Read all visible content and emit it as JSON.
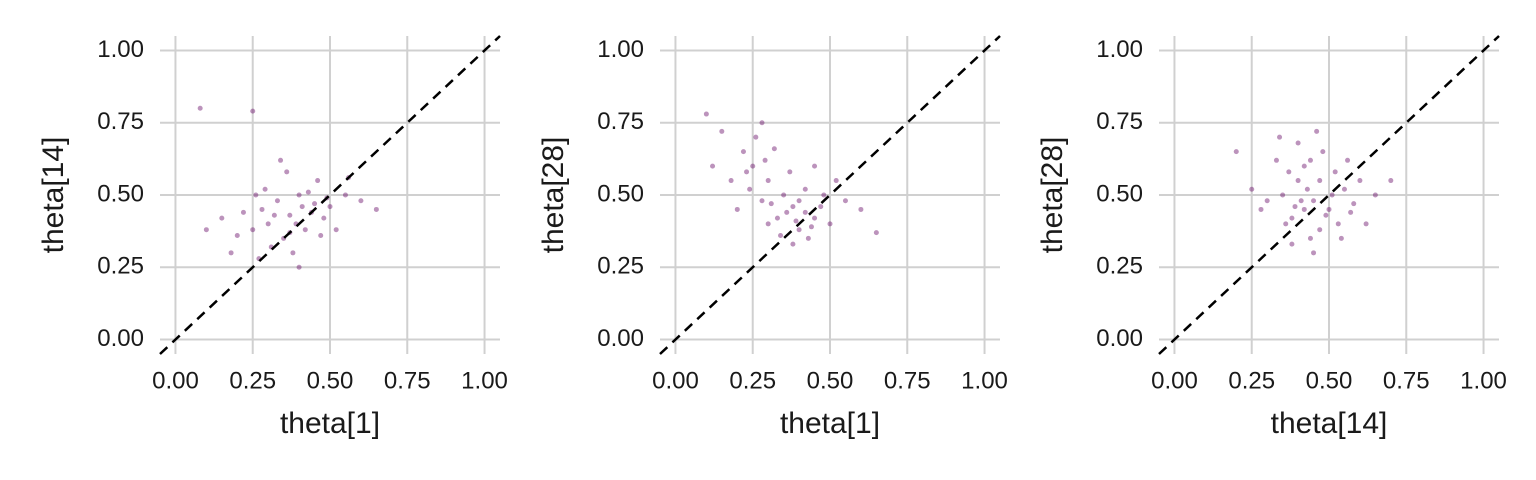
{
  "chart_data": [
    {
      "type": "scatter",
      "x_label": "theta[1]",
      "y_label": "theta[14]",
      "color": "#6b0f6b",
      "grid": true,
      "xlim": [
        -0.05,
        1.05
      ],
      "ylim": [
        -0.05,
        1.05
      ],
      "xticks": [
        {
          "value": 0,
          "label": "0.00"
        },
        0.25,
        {
          "value": 0.5,
          "label": "0.50"
        },
        0.75,
        {
          "value": 1,
          "label": "1.00"
        }
      ],
      "yticks": [
        {
          "value": 0,
          "label": "0.00"
        },
        0.25,
        {
          "value": 0.5,
          "label": "0.50"
        },
        0.75,
        {
          "value": 1,
          "label": "1.00"
        }
      ],
      "x": [
        0.37,
        0.3,
        0.45,
        0.25,
        0.5,
        0.35,
        0.4,
        0.28,
        0.42,
        0.33,
        0.2,
        0.55,
        0.38,
        0.46,
        0.31,
        0.48,
        0.22,
        0.36,
        0.27,
        0.52,
        0.15,
        0.6,
        0.4,
        0.34,
        0.1,
        0.65,
        0.08,
        0.25,
        0.44,
        0.39,
        0.29,
        0.47,
        0.18,
        0.56,
        0.41,
        0.32,
        0.37,
        0.43,
        0.26,
        0.49
      ],
      "y": [
        0.43,
        0.4,
        0.47,
        0.38,
        0.46,
        0.35,
        0.5,
        0.45,
        0.38,
        0.48,
        0.36,
        0.5,
        0.3,
        0.55,
        0.32,
        0.42,
        0.44,
        0.58,
        0.28,
        0.38,
        0.42,
        0.48,
        0.25,
        0.62,
        0.38,
        0.45,
        0.8,
        0.79,
        0.44,
        0.4,
        0.52,
        0.36,
        0.3,
        0.56,
        0.46,
        0.43,
        0.37,
        0.51,
        0.5,
        0.49
      ]
    },
    {
      "type": "scatter",
      "x_label": "theta[1]",
      "y_label": "theta[28]",
      "color": "#6b0f6b",
      "grid": true,
      "xlim": [
        -0.05,
        1.05
      ],
      "ylim": [
        -0.05,
        1.05
      ],
      "xticks": [
        {
          "value": 0,
          "label": "0.00"
        },
        0.25,
        {
          "value": 0.5,
          "label": "0.50"
        },
        0.75,
        {
          "value": 1,
          "label": "1.00"
        }
      ],
      "yticks": [
        {
          "value": 0,
          "label": "0.00"
        },
        0.25,
        {
          "value": 0.5,
          "label": "0.50"
        },
        0.75,
        {
          "value": 1,
          "label": "1.00"
        }
      ],
      "x": [
        0.38,
        0.3,
        0.42,
        0.25,
        0.45,
        0.35,
        0.28,
        0.4,
        0.22,
        0.48,
        0.33,
        0.37,
        0.18,
        0.5,
        0.26,
        0.43,
        0.15,
        0.55,
        0.3,
        0.38,
        0.2,
        0.1,
        0.6,
        0.45,
        0.32,
        0.24,
        0.4,
        0.36,
        0.28,
        0.47,
        0.52,
        0.34,
        0.12,
        0.65,
        0.42,
        0.29,
        0.39,
        0.31,
        0.44,
        0.23
      ],
      "y": [
        0.46,
        0.55,
        0.44,
        0.6,
        0.42,
        0.5,
        0.48,
        0.38,
        0.65,
        0.5,
        0.42,
        0.58,
        0.55,
        0.4,
        0.7,
        0.35,
        0.72,
        0.48,
        0.4,
        0.33,
        0.45,
        0.78,
        0.45,
        0.6,
        0.66,
        0.52,
        0.48,
        0.44,
        0.75,
        0.46,
        0.55,
        0.36,
        0.6,
        0.37,
        0.52,
        0.62,
        0.41,
        0.47,
        0.39,
        0.58
      ]
    },
    {
      "type": "scatter",
      "x_label": "theta[14]",
      "y_label": "theta[28]",
      "color": "#6b0f6b",
      "grid": true,
      "xlim": [
        -0.05,
        1.05
      ],
      "ylim": [
        -0.05,
        1.05
      ],
      "xticks": [
        {
          "value": 0,
          "label": "0.00"
        },
        0.25,
        {
          "value": 0.5,
          "label": "0.50"
        },
        0.75,
        {
          "value": 1,
          "label": "1.00"
        }
      ],
      "yticks": [
        {
          "value": 0,
          "label": "0.00"
        },
        0.25,
        {
          "value": 0.5,
          "label": "0.50"
        },
        0.75,
        {
          "value": 1,
          "label": "1.00"
        }
      ],
      "x": [
        0.45,
        0.4,
        0.5,
        0.38,
        0.55,
        0.42,
        0.47,
        0.35,
        0.52,
        0.44,
        0.3,
        0.58,
        0.4,
        0.48,
        0.36,
        0.6,
        0.33,
        0.53,
        0.25,
        0.65,
        0.42,
        0.46,
        0.38,
        0.56,
        0.28,
        0.7,
        0.43,
        0.49,
        0.37,
        0.51,
        0.2,
        0.62,
        0.45,
        0.34,
        0.54,
        0.41,
        0.47,
        0.39,
        0.57,
        0.44
      ],
      "y": [
        0.48,
        0.55,
        0.45,
        0.42,
        0.52,
        0.6,
        0.38,
        0.5,
        0.58,
        0.35,
        0.48,
        0.47,
        0.68,
        0.65,
        0.4,
        0.55,
        0.62,
        0.4,
        0.52,
        0.5,
        0.45,
        0.72,
        0.33,
        0.62,
        0.45,
        0.55,
        0.52,
        0.43,
        0.58,
        0.5,
        0.65,
        0.4,
        0.3,
        0.7,
        0.35,
        0.48,
        0.55,
        0.46,
        0.44,
        0.62
      ]
    }
  ]
}
